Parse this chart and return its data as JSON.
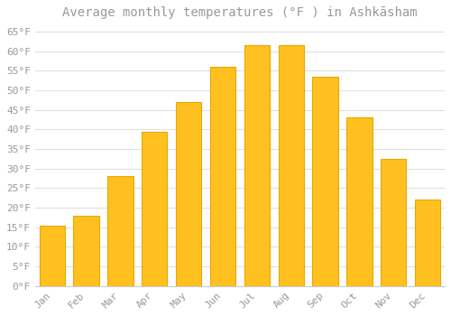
{
  "title": "Average monthly temperatures (°F ) in Ashkāsham",
  "months": [
    "Jan",
    "Feb",
    "Mar",
    "Apr",
    "May",
    "Jun",
    "Jul",
    "Aug",
    "Sep",
    "Oct",
    "Nov",
    "Dec"
  ],
  "values": [
    15.5,
    18.0,
    28.0,
    39.5,
    47.0,
    56.0,
    61.5,
    61.5,
    53.5,
    43.0,
    32.5,
    22.0
  ],
  "bar_color": "#FFC020",
  "bar_edge_color": "#E8A800",
  "background_color": "#FFFFFF",
  "grid_color": "#E0E0E0",
  "text_color": "#999999",
  "ylim": [
    0,
    67
  ],
  "yticks": [
    0,
    5,
    10,
    15,
    20,
    25,
    30,
    35,
    40,
    45,
    50,
    55,
    60,
    65
  ],
  "ytick_labels": [
    "0°F",
    "5°F",
    "10°F",
    "15°F",
    "20°F",
    "25°F",
    "30°F",
    "35°F",
    "40°F",
    "45°F",
    "50°F",
    "55°F",
    "60°F",
    "65°F"
  ],
  "title_fontsize": 10,
  "tick_fontsize": 8,
  "bar_width": 0.75
}
